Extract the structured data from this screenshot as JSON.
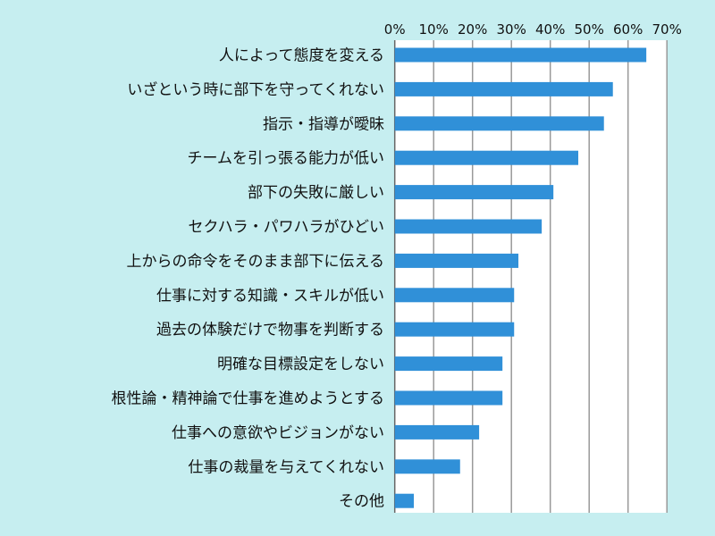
{
  "chart_data": {
    "type": "bar",
    "orientation": "horizontal",
    "categories": [
      "人によって態度を変える",
      "いざという時に部下を守ってくれない",
      "指示・指導が曖昧",
      "チームを引っ張る能力が低い",
      "部下の失敗に厳しい",
      "セクハラ・パワハラがひどい",
      "上からの命令をそのまま部下に伝える",
      "仕事に対する知識・スキルが低い",
      "過去の体験だけで物事を判断する",
      "明確な目標設定をしない",
      "根性論・精神論で仕事を進めようとする",
      "仕事への意欲やビジョンがない",
      "仕事の裁量を与えてくれない",
      "その他"
    ],
    "values": [
      64.7,
      56.1,
      53.8,
      47.2,
      40.8,
      37.8,
      31.8,
      30.7,
      30.7,
      27.7,
      27.7,
      21.7,
      16.8,
      4.9
    ],
    "xlim": [
      0,
      70
    ],
    "xticks": [
      "0%",
      "10%",
      "20%",
      "30%",
      "40%",
      "50%",
      "60%",
      "70%"
    ],
    "grid": true,
    "axis_position": "top",
    "colors": {
      "bar": "#3090d8",
      "background": "#c6eef0",
      "plot": "#ffffff",
      "grid": "#999999"
    }
  }
}
